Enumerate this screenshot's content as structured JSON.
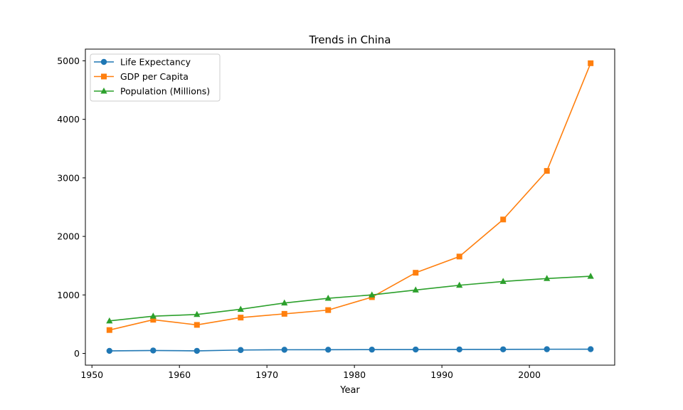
{
  "chart_data": {
    "type": "line",
    "title": "Trends in China",
    "xlabel": "Year",
    "ylabel": "",
    "x": [
      1952,
      1957,
      1962,
      1967,
      1972,
      1977,
      1982,
      1987,
      1992,
      1997,
      2002,
      2007
    ],
    "xlim": [
      1949.25,
      2009.75
    ],
    "ylim": [
      -200,
      5200
    ],
    "xticks": [
      1950,
      1960,
      1970,
      1980,
      1990,
      2000
    ],
    "yticks": [
      0,
      1000,
      2000,
      3000,
      4000,
      5000
    ],
    "grid": false,
    "legend_position": "top-left",
    "series": [
      {
        "name": "Life Expectancy",
        "color": "#1f77b4",
        "marker": "circle",
        "values": [
          44.0,
          50.5,
          44.5,
          58.4,
          63.1,
          64.0,
          65.5,
          67.3,
          68.7,
          70.4,
          72.0,
          73.0
        ]
      },
      {
        "name": "GDP per Capita",
        "color": "#ff7f0e",
        "marker": "square",
        "values": [
          400,
          576,
          488,
          613,
          677,
          741,
          962,
          1379,
          1656,
          2289,
          3119,
          4959
        ]
      },
      {
        "name": "Population (Millions)",
        "color": "#2ca02c",
        "marker": "triangle",
        "values": [
          556,
          637,
          666,
          755,
          862,
          943,
          1000,
          1084,
          1165,
          1230,
          1280,
          1319
        ]
      }
    ]
  }
}
